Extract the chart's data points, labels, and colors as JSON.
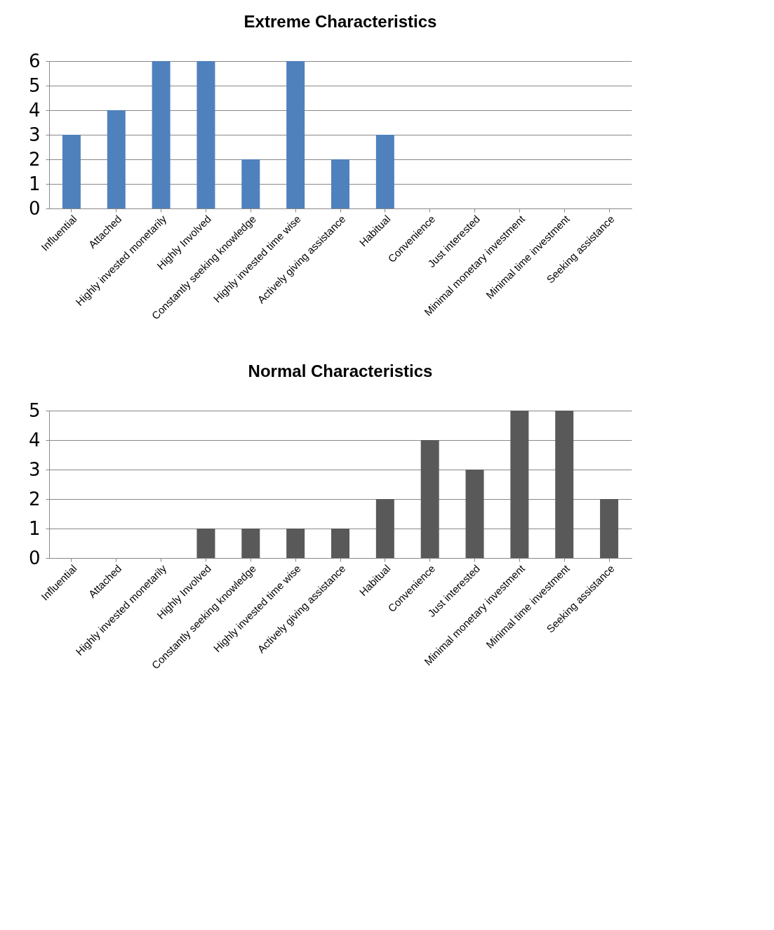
{
  "chart_data": [
    {
      "type": "bar",
      "title": "Extreme Characteristics",
      "categories": [
        "Influential",
        "Attached",
        "Highly invested monetarily",
        "Highly Involved",
        "Constantly seeking knowledge",
        "Highly invested time wise",
        "Actively giving assistance",
        "Habitual",
        "Convenience",
        "Just interested",
        "Minimal monetary investment",
        "Minimal time investment",
        "Seeking assistance"
      ],
      "values": [
        3,
        4,
        6,
        6,
        2,
        6,
        2,
        3,
        0,
        0,
        0,
        0,
        0
      ],
      "color": "#4f81bd",
      "ylim": [
        0,
        6
      ],
      "yticks": [
        0,
        1,
        2,
        3,
        4,
        5,
        6
      ],
      "grid": "y"
    },
    {
      "type": "bar",
      "title": "Normal Characteristics",
      "categories": [
        "Influential",
        "Attached",
        "Highly invested monetarily",
        "Highly Involved",
        "Constantly seeking knowledge",
        "Highly invested time wise",
        "Actively giving assistance",
        "Habitual",
        "Convenience",
        "Just interested",
        "Minimal monetary investment",
        "Minimal time investment",
        "Seeking assistance"
      ],
      "values": [
        0,
        0,
        0,
        1,
        1,
        1,
        1,
        2,
        4,
        3,
        5,
        5,
        2
      ],
      "color": "#595959",
      "ylim": [
        0,
        5
      ],
      "yticks": [
        0,
        1,
        2,
        3,
        4,
        5
      ],
      "grid": "y"
    }
  ]
}
